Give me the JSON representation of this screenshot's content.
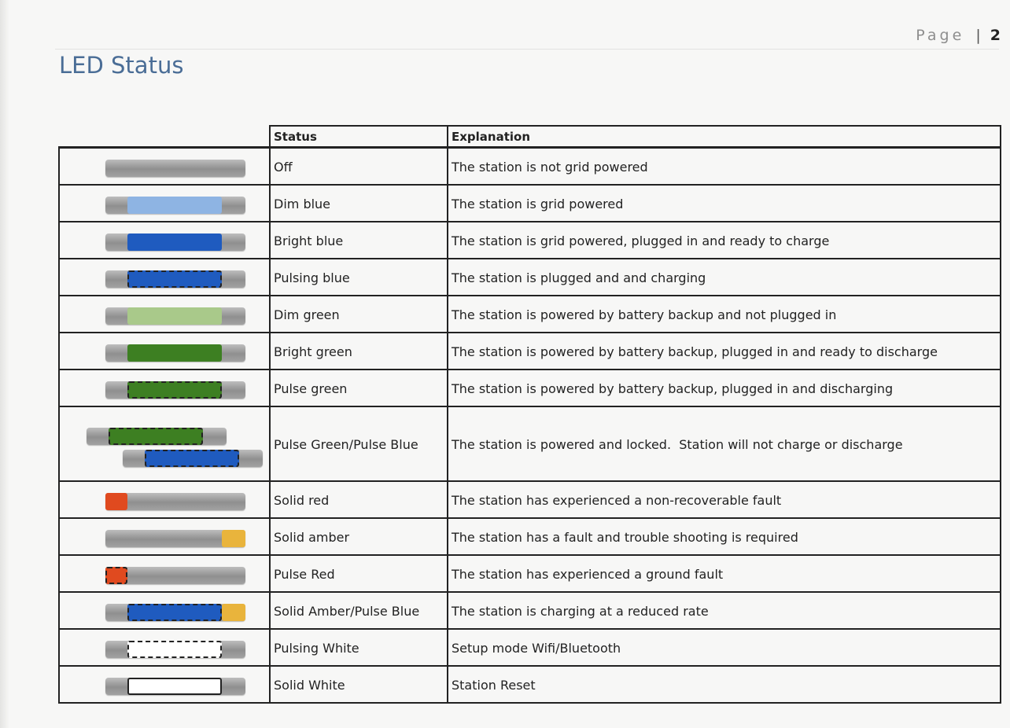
{
  "page": {
    "label": "Page",
    "separator": "|",
    "number": "2"
  },
  "title": "LED Status",
  "table": {
    "headers": {
      "status": "Status",
      "explanation": "Explanation"
    },
    "rows": [
      {
        "status": "Off",
        "explanation": "The station is not grid powered",
        "indicator": {
          "lights": []
        }
      },
      {
        "status": "Dim blue",
        "explanation": "The station is grid powered",
        "indicator": {
          "lights": [
            {
              "pos": "mid",
              "color": "#8eb4e3",
              "pulse": false
            }
          ]
        }
      },
      {
        "status": "Bright blue",
        "explanation": "The station is grid powered, plugged in and ready to charge",
        "indicator": {
          "lights": [
            {
              "pos": "mid",
              "color": "#1f5bbf",
              "pulse": false
            }
          ]
        }
      },
      {
        "status": "Pulsing blue",
        "explanation": "The station is plugged and and charging",
        "indicator": {
          "lights": [
            {
              "pos": "mid",
              "color": "#1f5bbf",
              "pulse": true
            }
          ]
        }
      },
      {
        "status": "Dim green",
        "explanation": "The station is powered by battery backup and not plugged in",
        "indicator": {
          "lights": [
            {
              "pos": "mid",
              "color": "#a9c98a",
              "pulse": false
            }
          ]
        }
      },
      {
        "status": "Bright green",
        "explanation": "The station is powered by battery backup, plugged in and ready to discharge",
        "indicator": {
          "lights": [
            {
              "pos": "mid",
              "color": "#3d7f22",
              "pulse": false
            }
          ]
        }
      },
      {
        "status": "Pulse green",
        "explanation": "The station is powered by battery backup, plugged in and discharging",
        "indicator": {
          "lights": [
            {
              "pos": "mid",
              "color": "#3d7f22",
              "pulse": true
            }
          ]
        }
      },
      {
        "status": "Pulse Green/Pulse Blue",
        "explanation": "The station is powered and locked.  Station will not charge or discharge",
        "indicator": {
          "double": true,
          "lights": [
            {
              "pos": "mid",
              "color": "#3d7f22",
              "pulse": true
            },
            {
              "pos": "mid",
              "color": "#1f5bbf",
              "pulse": true
            }
          ]
        }
      },
      {
        "status": "Solid red",
        "explanation": "The station has experienced a non-recoverable fault",
        "indicator": {
          "lights": [
            {
              "pos": "left",
              "color": "#e04a1f",
              "pulse": false
            }
          ]
        }
      },
      {
        "status": "Solid amber",
        "explanation": "The station has a fault and trouble shooting is required",
        "indicator": {
          "lights": [
            {
              "pos": "right",
              "color": "#e9b43c",
              "pulse": false
            }
          ]
        }
      },
      {
        "status": "Pulse Red",
        "explanation": "The station has experienced a ground fault",
        "indicator": {
          "lights": [
            {
              "pos": "left",
              "color": "#e04a1f",
              "pulse": true
            }
          ]
        }
      },
      {
        "status": "Solid Amber/Pulse Blue",
        "explanation": "The station is charging at a reduced rate",
        "indicator": {
          "lights": [
            {
              "pos": "mid",
              "color": "#1f5bbf",
              "pulse": true
            },
            {
              "pos": "right",
              "color": "#e9b43c",
              "pulse": false
            }
          ]
        }
      },
      {
        "status": "Pulsing White",
        "explanation": "Setup mode Wifi/Bluetooth",
        "indicator": {
          "lights": [
            {
              "pos": "mid",
              "color": "#ffffff",
              "pulse": true
            }
          ]
        }
      },
      {
        "status": "Solid White",
        "explanation": "Station Reset",
        "indicator": {
          "lights": [
            {
              "pos": "mid",
              "color": "#ffffff",
              "pulse": false,
              "outline": true
            }
          ]
        }
      }
    ]
  }
}
